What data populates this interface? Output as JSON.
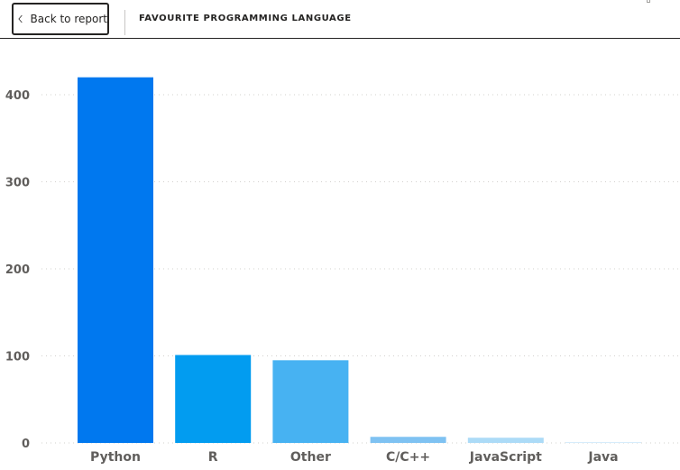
{
  "header": {
    "back_label": "Back to report",
    "title": "FAVOURITE PROGRAMMING LANGUAGE"
  },
  "icons": {
    "back": "chevron-left-icon"
  },
  "colors": {
    "bars": [
      "#0078ef",
      "#029cf0",
      "#47b2f2",
      "#7fc2f2",
      "#acdbf7",
      "#d6ecfb"
    ]
  },
  "chart_data": {
    "type": "bar",
    "categories": [
      "Python",
      "R",
      "Other",
      "C/C++",
      "JavaScript",
      "Java"
    ],
    "values": [
      420,
      101,
      95,
      7,
      6,
      1
    ],
    "title": "FAVOURITE PROGRAMMING LANGUAGE",
    "xlabel": "",
    "ylabel": "",
    "ylim": [
      0,
      400
    ],
    "yticks": [
      0,
      100,
      200,
      300,
      400
    ],
    "grid": true,
    "legend": "none"
  }
}
